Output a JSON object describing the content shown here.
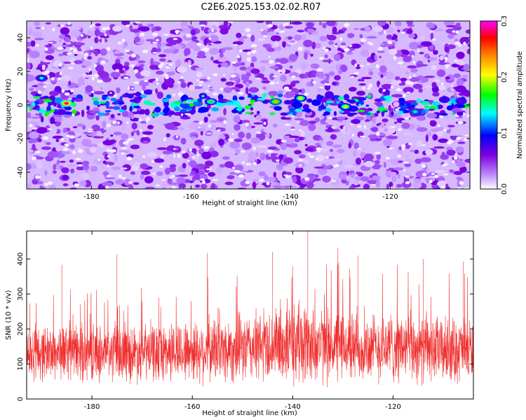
{
  "title": "C2E6.2025.153.02.02.R07",
  "chart_data": [
    {
      "type": "heatmap",
      "xlabel": "Height of straight line (km)",
      "ylabel": "Frequency (Hz)",
      "xlim": [
        -193,
        -104
      ],
      "ylim": [
        -50,
        50
      ],
      "x_ticks": [
        -180,
        -160,
        -140,
        -120
      ],
      "y_ticks": [
        -40,
        -20,
        0,
        20,
        40
      ],
      "x_tick_labels": [
        "-180",
        "-160",
        "-140",
        "-120"
      ],
      "y_tick_labels": [
        "-40",
        "-20",
        "0",
        "20",
        "40"
      ],
      "colorbar": {
        "label": "Normalized spectral amplitude",
        "range": [
          0.0,
          0.3
        ],
        "ticks": [
          0.0,
          0.1,
          0.2,
          0.3
        ],
        "tick_labels": [
          "0.0",
          "0.1",
          "0.2",
          "0.3"
        ],
        "colormap": [
          "#ffffff",
          "#b070ff",
          "#7a00e0",
          "#0000ff",
          "#00ffff",
          "#00ff00",
          "#ffff00",
          "#ff8000",
          "#ff0000",
          "#ff00ff"
        ]
      },
      "features": {
        "band_center_hz": 0,
        "band_halfwidth_hz": 6,
        "hot_spots": [
          {
            "x": -185,
            "y": 1,
            "level": 0.28
          },
          {
            "x": -143,
            "y": 2,
            "level": 0.22
          },
          {
            "x": -138,
            "y": 4,
            "level": 0.2
          },
          {
            "x": -129,
            "y": -1,
            "level": 0.2
          },
          {
            "x": -156,
            "y": 2,
            "level": 0.17
          },
          {
            "x": -115,
            "y": -4,
            "level": 0.15
          },
          {
            "x": -190,
            "y": 16,
            "level": 0.14
          }
        ]
      }
    },
    {
      "type": "line",
      "xlabel": "Height of straight line (km)",
      "ylabel": "SNR (10 * v/v)",
      "xlim": [
        -193,
        -104
      ],
      "ylim": [
        0,
        480
      ],
      "x_ticks": [
        -180,
        -160,
        -140,
        -120
      ],
      "y_ticks": [
        0,
        100,
        200,
        300,
        400
      ],
      "x_tick_labels": [
        "-180",
        "-160",
        "-140",
        "-120"
      ],
      "y_tick_labels": [
        "0",
        "100",
        "200",
        "300",
        "400"
      ],
      "color": "#f03030",
      "envelope": {
        "x": [
          -193,
          -185,
          -175,
          -165,
          -155,
          -145,
          -140,
          -135,
          -130,
          -125,
          -120,
          -115,
          -110,
          -104
        ],
        "mean": [
          130,
          135,
          130,
          135,
          140,
          150,
          160,
          155,
          150,
          145,
          150,
          145,
          140,
          140
        ],
        "spread": [
          90,
          95,
          95,
          100,
          110,
          120,
          140,
          130,
          120,
          115,
          120,
          115,
          110,
          110
        ]
      },
      "peaks": [
        {
          "x": -137,
          "y": 480
        },
        {
          "x": -131,
          "y": 432
        },
        {
          "x": -114,
          "y": 400
        },
        {
          "x": -186,
          "y": 383
        },
        {
          "x": -157,
          "y": 417
        },
        {
          "x": -144,
          "y": 420
        },
        {
          "x": -127,
          "y": 410
        },
        {
          "x": -106,
          "y": 393
        },
        {
          "x": -175,
          "y": 413
        }
      ]
    }
  ]
}
